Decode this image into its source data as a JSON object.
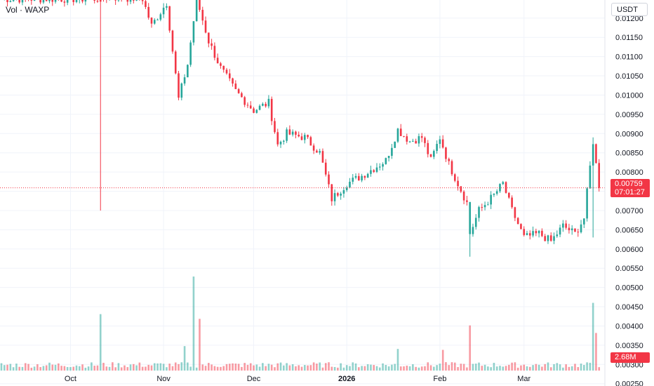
{
  "header": {
    "volume_label": "Vol · WAXP"
  },
  "price_axis": {
    "currency": "USDT",
    "current_price": "0.00759",
    "countdown": "07:01:27",
    "volume_value": "2.68M"
  },
  "colors": {
    "up": "#26a69a",
    "down": "#f23645",
    "grid": "#f0f3fa",
    "text": "#131722"
  },
  "chart_data": {
    "type": "candlestick",
    "title": "",
    "y_ticks": [
      "0.01200",
      "0.01150",
      "0.01100",
      "0.01050",
      "0.01000",
      "0.00950",
      "0.00900",
      "0.00850",
      "0.00800",
      "0.00750",
      "0.00700",
      "0.00650",
      "0.00600",
      "0.00550",
      "0.00500",
      "0.00450",
      "0.00400",
      "0.00350",
      "0.00300",
      "0.00250"
    ],
    "x_ticks": [
      "Oct",
      "Nov",
      "Dec",
      "2026",
      "Feb",
      "Mar"
    ],
    "y_range": [
      0.00244,
      0.01247
    ],
    "current_price": 0.00759,
    "close_path": [
      [
        "Sep 8",
        0.0125
      ],
      [
        "Oct 10",
        0.0125
      ],
      [
        "Oct 12",
        0.01255
      ],
      [
        "Oct 25",
        0.0125
      ],
      [
        "Oct 28",
        0.0118
      ],
      [
        "Nov 2",
        0.0124
      ],
      [
        "Nov 6",
        0.0099
      ],
      [
        "Nov 9",
        0.0108
      ],
      [
        "Nov 12",
        0.0125
      ],
      [
        "Nov 16",
        0.0114
      ],
      [
        "Nov 20",
        0.0107
      ],
      [
        "Nov 25",
        0.0101
      ],
      [
        "Dec 1",
        0.0096
      ],
      [
        "Dec 6",
        0.0098
      ],
      [
        "Dec 9",
        0.0087
      ],
      [
        "Dec 12",
        0.009
      ],
      [
        "Dec 18",
        0.0089
      ],
      [
        "Dec 23",
        0.0085
      ],
      [
        "Dec 27",
        0.0073
      ],
      [
        "Jan 1",
        0.0077
      ],
      [
        "Jan 6",
        0.0079
      ],
      [
        "Jan 10",
        0.0081
      ],
      [
        "Jan 14",
        0.0083
      ],
      [
        "Jan 18",
        0.0091
      ],
      [
        "Jan 22",
        0.0088
      ],
      [
        "Jan 26",
        0.0089
      ],
      [
        "Jan 29",
        0.0083
      ],
      [
        "Feb 1",
        0.0089
      ],
      [
        "Feb 4",
        0.0082
      ],
      [
        "Feb 7",
        0.0077
      ],
      [
        "Feb 10",
        0.0072
      ],
      [
        "Feb 11",
        0.0064
      ],
      [
        "Feb 14",
        0.007
      ],
      [
        "Feb 19",
        0.0074
      ],
      [
        "Feb 22",
        0.0077
      ],
      [
        "Feb 25",
        0.007
      ],
      [
        "Mar 1",
        0.0063
      ],
      [
        "Mar 6",
        0.0064
      ],
      [
        "Mar 10",
        0.0062
      ],
      [
        "Mar 14",
        0.0066
      ],
      [
        "Mar 18",
        0.0064
      ],
      [
        "Mar 21",
        0.0068
      ],
      [
        "Mar 24",
        0.0088
      ],
      [
        "Mar 26",
        0.00759
      ]
    ],
    "spikes": [
      {
        "date": "Oct 11",
        "high": 0.0125,
        "low": 0.007,
        "direction": "down"
      },
      {
        "date": "Feb 11",
        "high": 0.007,
        "low": 0.0058,
        "direction": "up"
      },
      {
        "date": "Mar 24",
        "high": 0.0089,
        "low": 0.0063,
        "direction": "up"
      }
    ],
    "volume_spikes": [
      {
        "date": "Oct 11",
        "height_ratio": 0.6
      },
      {
        "date": "Nov 8",
        "height_ratio": 0.26
      },
      {
        "date": "Nov 11",
        "height_ratio": 1.0
      },
      {
        "date": "Nov 13",
        "height_ratio": 0.55
      },
      {
        "date": "Jan 18",
        "height_ratio": 0.23
      },
      {
        "date": "Feb 2",
        "height_ratio": 0.22
      },
      {
        "date": "Feb 11",
        "height_ratio": 0.48
      },
      {
        "date": "Mar 24",
        "height_ratio": 0.72
      },
      {
        "date": "Mar 25",
        "height_ratio": 0.4
      }
    ]
  }
}
